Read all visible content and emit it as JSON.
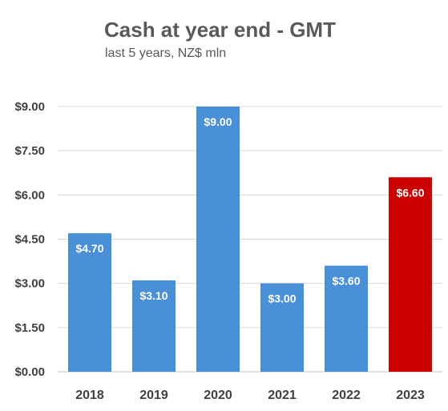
{
  "chart_data": {
    "type": "bar",
    "title": "Cash at year end - GMT",
    "subtitle": "last 5 years, NZ$ mln",
    "categories": [
      "2018",
      "2019",
      "2020",
      "2021",
      "2022",
      "2023"
    ],
    "values": [
      4.7,
      3.1,
      9.0,
      3.0,
      3.6,
      6.6
    ],
    "data_labels": [
      "$4.70",
      "$3.10",
      "$9.00",
      "$3.00",
      "$3.60",
      "$6.60"
    ],
    "y_ticks": [
      "$0.00",
      "$1.50",
      "$3.00",
      "$4.50",
      "$6.00",
      "$7.50",
      "$9.00"
    ],
    "ylim": [
      0,
      9
    ],
    "grid": true,
    "legend": "none",
    "colors": {
      "default": "#4a90d9",
      "highlight": "#cc0000",
      "grid": "#d9d9d9",
      "text": "#404040",
      "title": "#595959"
    },
    "highlight_index": 5
  }
}
